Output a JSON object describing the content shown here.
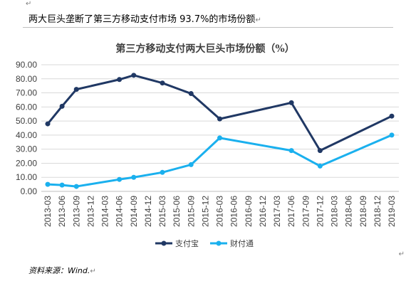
{
  "document": {
    "heading": "两大巨头垄断了第三方移动支付市场 93.7%的市场份额",
    "paragraph_mark": "↵",
    "source_note": "资料来源：Wind."
  },
  "chart_data": {
    "type": "line",
    "title": "第三方移动支付两大巨头市场份额（%）",
    "categories": [
      "2013-03",
      "2013-06",
      "2013-09",
      "2013-12",
      "2014-03",
      "2014-06",
      "2014-09",
      "2014-12",
      "2015-03",
      "2015-06",
      "2015-09",
      "2015-12",
      "2016-03",
      "2016-06",
      "2016-09",
      "2016-12",
      "2017-03",
      "2017-06",
      "2017-09",
      "2017-12",
      "2018-03",
      "2018-06",
      "2018-09",
      "2018-12",
      "2019-03"
    ],
    "series": [
      {
        "name": "支付宝",
        "color": "#203864",
        "values": [
          48.0,
          60.5,
          72.5,
          null,
          null,
          79.5,
          82.5,
          null,
          77.0,
          null,
          69.5,
          null,
          51.5,
          null,
          null,
          null,
          null,
          63.0,
          null,
          29.0,
          null,
          null,
          null,
          null,
          53.5
        ]
      },
      {
        "name": "财付通",
        "color": "#1ab0ee",
        "values": [
          5.0,
          4.5,
          3.5,
          null,
          null,
          8.5,
          10.0,
          null,
          13.5,
          null,
          19.0,
          null,
          38.0,
          null,
          null,
          null,
          null,
          29.0,
          null,
          18.0,
          null,
          null,
          null,
          null,
          40.0
        ]
      }
    ],
    "ylim": [
      0,
      90
    ],
    "yticks": [
      "0.00",
      "10.00",
      "20.00",
      "30.00",
      "40.00",
      "50.00",
      "60.00",
      "70.00",
      "80.00",
      "90.00"
    ],
    "xlabel": "",
    "ylabel": "",
    "grid": true,
    "legend_position": "bottom"
  }
}
